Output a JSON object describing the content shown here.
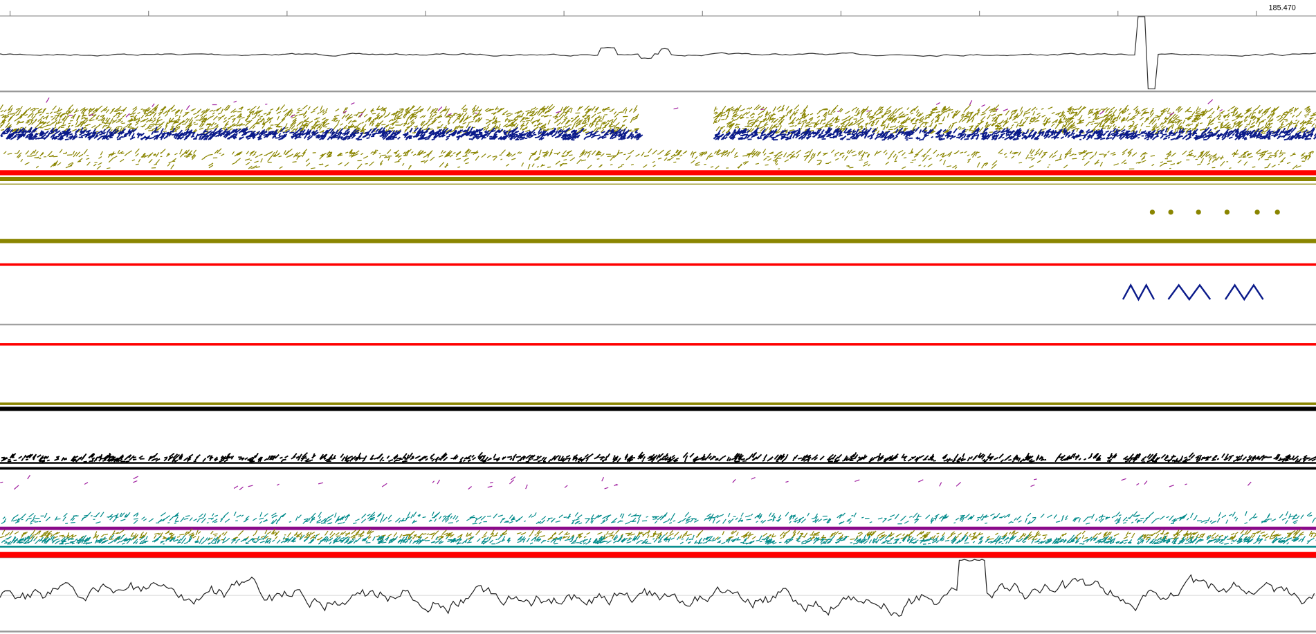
{
  "ruler": {
    "label": "185.470"
  }
}
